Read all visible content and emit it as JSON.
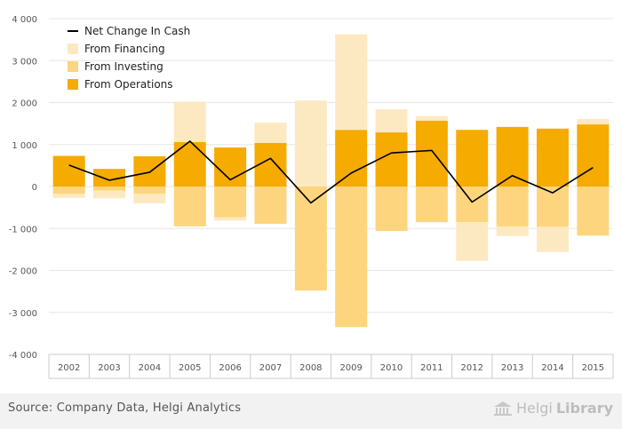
{
  "chart_data": {
    "type": "bar",
    "categories": [
      "2002",
      "2003",
      "2004",
      "2005",
      "2006",
      "2007",
      "2008",
      "2009",
      "2010",
      "2011",
      "2012",
      "2013",
      "2014",
      "2015"
    ],
    "series": [
      {
        "name": "From Operations",
        "kind": "stacked-bar",
        "color": "#f5ab00",
        "values": [
          730,
          420,
          720,
          1060,
          930,
          1040,
          0,
          1350,
          1290,
          1570,
          1350,
          1420,
          1380,
          1480
        ]
      },
      {
        "name": "From Investing",
        "kind": "stacked-bar",
        "color": "#fdd57e",
        "values": [
          -170,
          -100,
          -170,
          -950,
          -730,
          -890,
          -2480,
          -3350,
          -1060,
          -850,
          -850,
          -950,
          -960,
          -1170
        ]
      },
      {
        "name": "From Financing",
        "kind": "stacked-bar",
        "color": "#fde9c1",
        "values": [
          -100,
          -180,
          -230,
          960,
          -80,
          480,
          2050,
          2280,
          550,
          110,
          -920,
          -230,
          -600,
          130
        ]
      },
      {
        "name": "Net Change In Cash",
        "kind": "line",
        "color": "#000000",
        "values": [
          510,
          150,
          340,
          1080,
          160,
          670,
          -390,
          320,
          800,
          860,
          -370,
          260,
          -150,
          450
        ]
      }
    ],
    "ylim": [
      -4000,
      4000
    ],
    "yticks": [
      "4 000",
      "3 000",
      "2 000",
      "1 000",
      "0",
      "-1 000",
      "-2 000",
      "-3 000",
      "-4 000"
    ],
    "ytick_values": [
      4000,
      3000,
      2000,
      1000,
      0,
      -1000,
      -2000,
      -3000,
      -4000
    ],
    "legend": {
      "placement": "top-left",
      "items": [
        {
          "label": "Net Change In Cash",
          "color": "#000000",
          "marker": "line"
        },
        {
          "label": "From Financing",
          "color": "#fde9c1",
          "marker": "box"
        },
        {
          "label": "From Investing",
          "color": "#fdd57e",
          "marker": "box"
        },
        {
          "label": "From Operations",
          "color": "#f5ab00",
          "marker": "box"
        }
      ]
    },
    "grid": true
  },
  "footer": {
    "source": "Source: Company Data, Helgi Analytics",
    "brand_light": "Helgi",
    "brand_bold": "Library"
  },
  "icons": {
    "brand": "bank-building-icon"
  }
}
